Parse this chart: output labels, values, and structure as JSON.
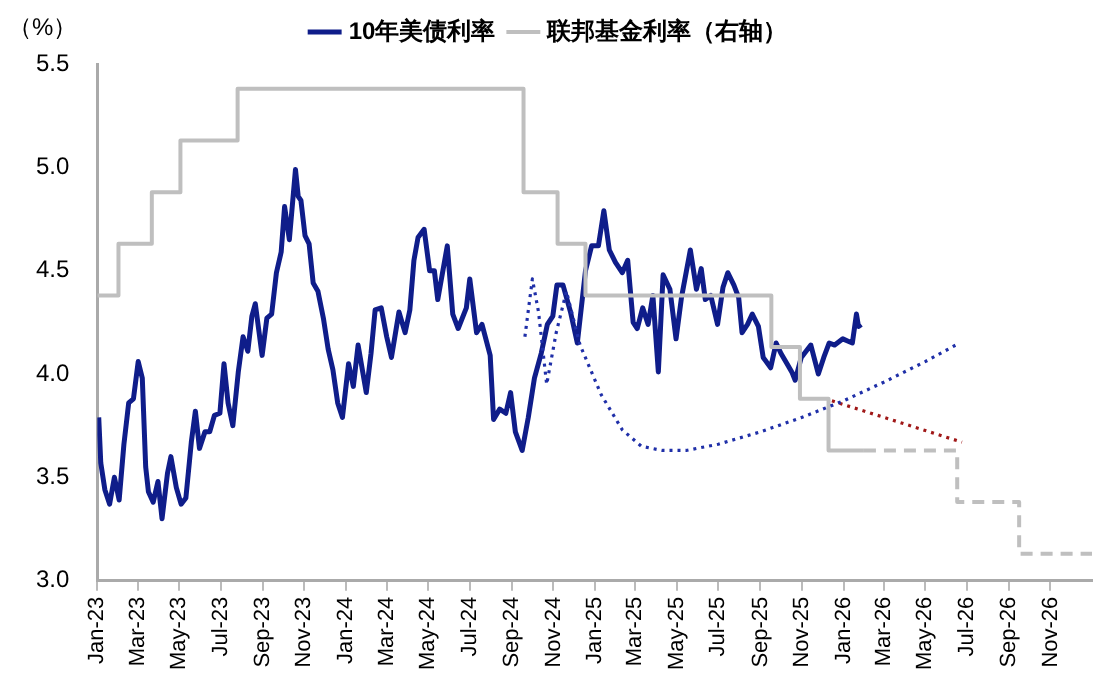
{
  "chart_data": {
    "type": "line",
    "ylabel": "（%）",
    "legend": "top",
    "grid": false,
    "marker": "none",
    "xlim": [
      "2023-01-01",
      "2027-01-01"
    ],
    "xticks": [
      {
        "value": "2023-01",
        "label": "Jan-23"
      },
      {
        "value": "2023-03",
        "label": "Mar-23"
      },
      {
        "value": "2023-05",
        "label": "May-23"
      },
      {
        "value": "2023-07",
        "label": "Jul-23"
      },
      {
        "value": "2023-09",
        "label": "Sep-23"
      },
      {
        "value": "2023-11",
        "label": "Nov-23"
      },
      {
        "value": "2024-01",
        "label": "Jan-24"
      },
      {
        "value": "2024-03",
        "label": "Mar-24"
      },
      {
        "value": "2024-05",
        "label": "May-24"
      },
      {
        "value": "2024-07",
        "label": "Jul-24"
      },
      {
        "value": "2024-09",
        "label": "Sep-24"
      },
      {
        "value": "2024-11",
        "label": "Nov-24"
      },
      {
        "value": "2025-01",
        "label": "Jan-25"
      },
      {
        "value": "2025-03",
        "label": "Mar-25"
      },
      {
        "value": "2025-05",
        "label": "May-25"
      },
      {
        "value": "2025-07",
        "label": "Jul-25"
      },
      {
        "value": "2025-09",
        "label": "Sep-25"
      },
      {
        "value": "2025-11",
        "label": "Nov-25"
      },
      {
        "value": "2026-01",
        "label": "Jan-26"
      },
      {
        "value": "2026-03",
        "label": "Mar-26"
      },
      {
        "value": "2026-05",
        "label": "May-26"
      },
      {
        "value": "2026-07",
        "label": "Jul-26"
      },
      {
        "value": "2026-09",
        "label": "Sep-26"
      },
      {
        "value": "2026-11",
        "label": "Nov-26"
      }
    ],
    "ylim": [
      3.0,
      5.5
    ],
    "yticks": [
      {
        "value": 3.0,
        "label": "3.0"
      },
      {
        "value": 3.5,
        "label": "3.5"
      },
      {
        "value": 4.0,
        "label": "4.0"
      },
      {
        "value": 4.5,
        "label": "4.5"
      },
      {
        "value": 5.0,
        "label": "5.0"
      },
      {
        "value": 5.5,
        "label": "5.5"
      }
    ],
    "series": [
      {
        "name": "10年美债利率",
        "color": "#0f1d8a",
        "line_style": "solid",
        "x": [
          "2023-01-03",
          "2023-01-06",
          "2023-01-12",
          "2023-01-19",
          "2023-01-26",
          "2023-02-02",
          "2023-02-09",
          "2023-02-16",
          "2023-02-23",
          "2023-03-02",
          "2023-03-08",
          "2023-03-13",
          "2023-03-17",
          "2023-03-24",
          "2023-03-31",
          "2023-04-06",
          "2023-04-14",
          "2023-04-19",
          "2023-04-27",
          "2023-05-04",
          "2023-05-11",
          "2023-05-19",
          "2023-05-25",
          "2023-05-31",
          "2023-06-08",
          "2023-06-15",
          "2023-06-22",
          "2023-06-30",
          "2023-07-06",
          "2023-07-12",
          "2023-07-19",
          "2023-07-27",
          "2023-08-03",
          "2023-08-10",
          "2023-08-16",
          "2023-08-21",
          "2023-08-31",
          "2023-09-07",
          "2023-09-14",
          "2023-09-21",
          "2023-09-28",
          "2023-10-03",
          "2023-10-10",
          "2023-10-19",
          "2023-10-23",
          "2023-10-27",
          "2023-11-02",
          "2023-11-08",
          "2023-11-14",
          "2023-11-21",
          "2023-11-29",
          "2023-12-06",
          "2023-12-13",
          "2023-12-20",
          "2023-12-27",
          "2024-01-05",
          "2024-01-12",
          "2024-01-19",
          "2024-01-31",
          "2024-02-07",
          "2024-02-13",
          "2024-02-22",
          "2024-03-01",
          "2024-03-08",
          "2024-03-19",
          "2024-03-28",
          "2024-04-04",
          "2024-04-10",
          "2024-04-16",
          "2024-04-25",
          "2024-05-03",
          "2024-05-10",
          "2024-05-15",
          "2024-05-29",
          "2024-06-06",
          "2024-06-14",
          "2024-06-26",
          "2024-07-01",
          "2024-07-11",
          "2024-07-19",
          "2024-07-31",
          "2024-08-05",
          "2024-08-14",
          "2024-08-23",
          "2024-08-30",
          "2024-09-06",
          "2024-09-16",
          "2024-09-25",
          "2024-10-04",
          "2024-10-14",
          "2024-10-23",
          "2024-10-31",
          "2024-11-06",
          "2024-11-15",
          "2024-11-26",
          "2024-12-06",
          "2024-12-18",
          "2024-12-27",
          "2025-01-06",
          "2025-01-14",
          "2025-01-22",
          "2025-01-31",
          "2025-02-10",
          "2025-02-18",
          "2025-02-26",
          "2025-03-04",
          "2025-03-12",
          "2025-03-20",
          "2025-03-27",
          "2025-04-04",
          "2025-04-11",
          "2025-04-21",
          "2025-04-30",
          "2025-05-08",
          "2025-05-21",
          "2025-05-30",
          "2025-06-06",
          "2025-06-12",
          "2025-06-20",
          "2025-06-30",
          "2025-07-08",
          "2025-07-15",
          "2025-07-24",
          "2025-07-31",
          "2025-08-05",
          "2025-08-13",
          "2025-08-20",
          "2025-08-29",
          "2025-09-05",
          "2025-09-16",
          "2025-09-24",
          "2025-10-01",
          "2025-10-10",
          "2025-10-17",
          "2025-10-22",
          "2025-10-31",
          "2025-11-07",
          "2025-11-14",
          "2025-11-25",
          "2025-12-03",
          "2025-12-11",
          "2025-12-19",
          "2025-12-31",
          "2026-01-07",
          "2026-01-14",
          "2026-01-20",
          "2026-01-23",
          "2026-01-27"
        ],
        "values": [
          3.79,
          3.57,
          3.44,
          3.37,
          3.5,
          3.39,
          3.66,
          3.86,
          3.88,
          4.06,
          3.98,
          3.55,
          3.43,
          3.38,
          3.48,
          3.3,
          3.52,
          3.6,
          3.45,
          3.37,
          3.4,
          3.67,
          3.82,
          3.64,
          3.72,
          3.72,
          3.8,
          3.81,
          4.05,
          3.86,
          3.75,
          4.01,
          4.18,
          4.11,
          4.28,
          4.34,
          4.09,
          4.27,
          4.29,
          4.49,
          4.59,
          4.81,
          4.65,
          4.99,
          4.86,
          4.84,
          4.67,
          4.63,
          4.44,
          4.4,
          4.27,
          4.12,
          4.02,
          3.86,
          3.79,
          4.05,
          3.94,
          4.14,
          3.91,
          4.1,
          4.31,
          4.32,
          4.18,
          4.08,
          4.3,
          4.2,
          4.31,
          4.55,
          4.66,
          4.7,
          4.5,
          4.5,
          4.36,
          4.62,
          4.29,
          4.22,
          4.32,
          4.46,
          4.2,
          4.24,
          4.09,
          3.78,
          3.83,
          3.81,
          3.91,
          3.72,
          3.63,
          3.79,
          3.98,
          4.1,
          4.24,
          4.28,
          4.43,
          4.43,
          4.3,
          4.15,
          4.5,
          4.62,
          4.62,
          4.79,
          4.6,
          4.54,
          4.49,
          4.55,
          4.25,
          4.22,
          4.32,
          4.24,
          4.38,
          4.01,
          4.48,
          4.41,
          4.17,
          4.37,
          4.6,
          4.41,
          4.51,
          4.36,
          4.38,
          4.24,
          4.42,
          4.49,
          4.43,
          4.37,
          4.2,
          4.24,
          4.29,
          4.23,
          4.08,
          4.03,
          4.15,
          4.1,
          4.05,
          4.01,
          3.97,
          4.08,
          4.11,
          4.14,
          4.0,
          4.08,
          4.15,
          4.14,
          4.17,
          4.16,
          4.15,
          4.29,
          4.23,
          4.24
        ]
      },
      {
        "name": "联邦基金利率（右轴）",
        "type": "step",
        "color": "#bfbfbf",
        "line_style": "solid",
        "x": [
          "2023-01-01",
          "2023-02-01",
          "2023-03-22",
          "2023-05-03",
          "2023-07-26",
          "2024-09-18",
          "2024-11-07",
          "2024-12-18",
          "2025-09-17",
          "2025-10-29",
          "2025-12-10",
          "2026-01-31"
        ],
        "values": [
          4.38,
          4.63,
          4.88,
          5.13,
          5.38,
          4.88,
          4.63,
          4.38,
          4.13,
          3.88,
          3.63,
          3.63
        ]
      },
      {
        "type": "step",
        "color": "#bfbfbf",
        "line_style": "dashed",
        "x": [
          "2026-01-31",
          "2026-06-17",
          "2026-09-16",
          "2027-01-01"
        ],
        "values": [
          3.63,
          3.38,
          3.13,
          3.13
        ]
      },
      {
        "color": "#1f2fa8",
        "line_style": "dotted",
        "x": [
          "2024-09-20",
          "2024-10-01",
          "2024-10-10",
          "2024-10-22",
          "2024-11-05",
          "2024-11-20",
          "2024-12-10",
          "2025-01-10",
          "2025-02-10",
          "2025-03-10",
          "2025-04-10",
          "2025-05-15",
          "2025-07-01",
          "2025-09-01",
          "2025-11-01",
          "2026-01-01",
          "2026-03-01",
          "2026-05-01",
          "2026-06-15"
        ],
        "values": [
          4.18,
          4.46,
          4.3,
          3.95,
          4.2,
          4.4,
          4.14,
          3.9,
          3.73,
          3.65,
          3.63,
          3.63,
          3.66,
          3.72,
          3.79,
          3.87,
          3.96,
          4.06,
          4.14
        ]
      },
      {
        "color": "#a01818",
        "line_style": "dotted",
        "x": [
          "2025-12-15",
          "2026-06-24"
        ],
        "values": [
          3.87,
          3.67
        ]
      }
    ]
  }
}
